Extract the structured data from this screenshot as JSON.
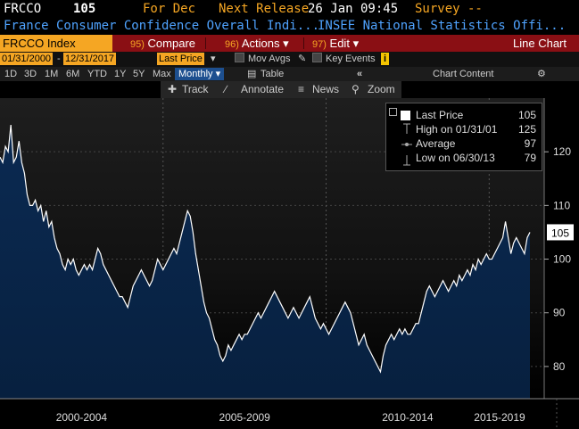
{
  "header": {
    "ticker": "FRCCO",
    "last": "105",
    "for_label": "For Dec",
    "next_release_label": "Next Release",
    "next_release_value": "26 Jan 09:45",
    "survey_label": "Survey --",
    "description": "France Consumer Confidence Overall Indi...",
    "source": "INSEE National Statistics Offi..."
  },
  "toolbar": {
    "security": "FRCCO Index",
    "compare_num": "95)",
    "compare": "Compare",
    "actions_num": "96)",
    "actions": "Actions",
    "edit_num": "97)",
    "edit": "Edit",
    "view": "Line Chart"
  },
  "range": {
    "start": "01/31/2000",
    "end": "12/31/2017",
    "field": "Last Price",
    "mov_avgs": "Mov Avgs",
    "key_events": "Key Events"
  },
  "periods": {
    "items": [
      "1D",
      "3D",
      "1M",
      "6M",
      "YTD",
      "1Y",
      "5Y",
      "Max"
    ],
    "frequency": "Monthly",
    "table": "Table",
    "chart_content": "Chart Content"
  },
  "tools": {
    "track": "Track",
    "annotate": "Annotate",
    "news": "News",
    "zoom": "Zoom"
  },
  "legend": {
    "rows": [
      {
        "label": "Last Price",
        "value": "105"
      },
      {
        "label": "High on 01/31/01",
        "value": "125"
      },
      {
        "label": "Average",
        "value": "97"
      },
      {
        "label": "Low on 06/30/13",
        "value": "79"
      }
    ]
  },
  "colors": {
    "ticker": "#ffffff",
    "orange": "#f5a623",
    "blue_text": "#4fa3ff",
    "toolbar_bg": "#8a0f14",
    "line": "#ffffff",
    "area_top": "#0b2a52"
  },
  "chart_data": {
    "type": "area",
    "series": [
      {
        "values": [
          119,
          118,
          121,
          120,
          125,
          118,
          119,
          122,
          118,
          116,
          112,
          110,
          110,
          111,
          109,
          110,
          107,
          109,
          106,
          107,
          104,
          102,
          101,
          99,
          98,
          100,
          99,
          100,
          98,
          97,
          98,
          99,
          98,
          99,
          98,
          100,
          102,
          101,
          99,
          98,
          97,
          96,
          95,
          94,
          93,
          93,
          92,
          91,
          93,
          95,
          96,
          97,
          98,
          97,
          96,
          95,
          96,
          98,
          100,
          99,
          98,
          99,
          100,
          101,
          102,
          101,
          103,
          105,
          107,
          109,
          108,
          105,
          101,
          98,
          95,
          92,
          90,
          89,
          87,
          85,
          84,
          82,
          81,
          82,
          84,
          83,
          84,
          85,
          86,
          85,
          86,
          86,
          87,
          88,
          89,
          90,
          89,
          90,
          91,
          92,
          93,
          94,
          93,
          92,
          91,
          90,
          89,
          90,
          91,
          90,
          89,
          90,
          91,
          92,
          93,
          91,
          89,
          88,
          87,
          88,
          87,
          86,
          87,
          88,
          89,
          90,
          91,
          92,
          91,
          90,
          88,
          86,
          84,
          85,
          86,
          84,
          83,
          82,
          81,
          80,
          79,
          82,
          84,
          85,
          86,
          85,
          86,
          87,
          86,
          87,
          86,
          86,
          87,
          88,
          88,
          90,
          92,
          94,
          95,
          94,
          93,
          94,
          95,
          96,
          95,
          94,
          95,
          96,
          95,
          97,
          96,
          97,
          98,
          97,
          99,
          98,
          100,
          99,
          100,
          101,
          100,
          100,
          101,
          102,
          103,
          104,
          107,
          104,
          101,
          103,
          104,
          103,
          102,
          101,
          104,
          105
        ]
      }
    ],
    "x_start": "01/31/2000",
    "x_end": "12/31/2017",
    "x_period_labels": [
      "2000-2004",
      "2005-2009",
      "2010-2014",
      "2015-2019"
    ],
    "y_ticks": [
      80,
      90,
      100,
      110,
      120
    ],
    "ylim": [
      74,
      130
    ],
    "last_value_label": "105",
    "grid": true,
    "legend_position": "top-right"
  }
}
